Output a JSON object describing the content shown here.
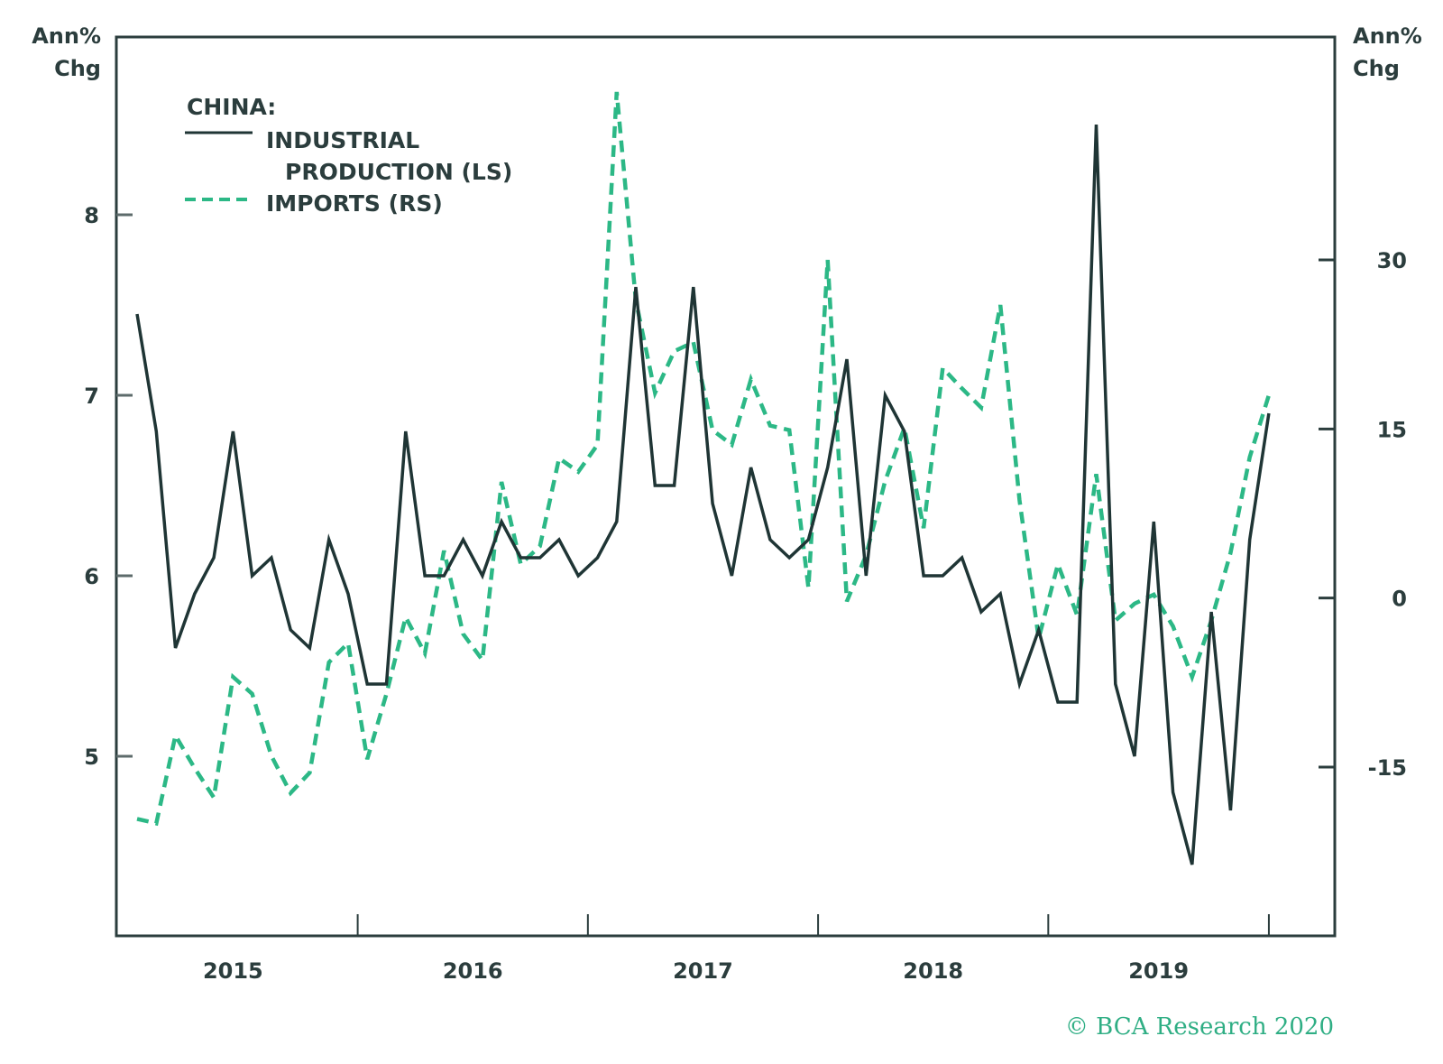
{
  "chart_data": {
    "type": "line",
    "title": "",
    "legend": {
      "heading": "CHINA:",
      "placement": "top-left",
      "entries": [
        {
          "line1": "INDUSTRIAL",
          "line2": "PRODUCTION (LS)",
          "style": "solid"
        },
        {
          "line1": "IMPORTS (RS)",
          "style": "dashed"
        }
      ]
    },
    "left_axis": {
      "label_line1": "Ann%",
      "label_line2": "Chg",
      "ticks": [
        "8",
        "7",
        "6",
        "5"
      ],
      "tick_values": [
        8,
        7,
        6,
        5
      ],
      "range": [
        4.02,
        9.0
      ]
    },
    "right_axis": {
      "label_line1": "Ann%",
      "label_line2": "Chg",
      "ticks": [
        "30",
        "15",
        "0",
        "-15"
      ],
      "tick_values": [
        30,
        15,
        0,
        -15
      ],
      "range": [
        -29.7,
        53.1
      ]
    },
    "x_axis": {
      "tick_labels": [
        "2015",
        "2016",
        "2017",
        "2018",
        "2019"
      ],
      "start": "2015-01",
      "end": "2019-12",
      "frequency": "monthly"
    },
    "series": [
      {
        "name": "Industrial Production (LS)",
        "axis": "left",
        "color": "#1f3535",
        "values": [
          7.45,
          6.8,
          5.6,
          5.9,
          6.1,
          6.8,
          6.0,
          6.1,
          5.7,
          5.6,
          6.2,
          5.9,
          5.4,
          5.4,
          6.8,
          6.0,
          6.0,
          6.2,
          6.0,
          6.3,
          6.1,
          6.1,
          6.2,
          6.0,
          6.1,
          6.3,
          7.6,
          6.5,
          6.5,
          7.6,
          6.4,
          6.0,
          6.6,
          6.2,
          6.1,
          6.2,
          6.6,
          7.2,
          6.0,
          7.0,
          6.8,
          6.0,
          6.0,
          6.1,
          5.8,
          5.9,
          5.4,
          5.7,
          5.3,
          5.3,
          8.5,
          5.4,
          5.0,
          6.3,
          4.8,
          4.4,
          5.8,
          4.7,
          6.2,
          6.9
        ]
      },
      {
        "name": "Imports (RS)",
        "axis": "right",
        "color": "#2cb886",
        "values": [
          -19.6,
          -20.0,
          -12.2,
          -15.1,
          -17.7,
          -7.0,
          -8.5,
          -14.0,
          -17.3,
          -15.5,
          -5.7,
          -4.0,
          -14.3,
          -8.5,
          -1.7,
          -4.9,
          4.2,
          -3.2,
          -5.5,
          10.3,
          3.0,
          4.6,
          12.4,
          11.2,
          13.6,
          44.9,
          26.4,
          18.2,
          21.9,
          22.7,
          14.9,
          13.6,
          19.4,
          15.3,
          14.9,
          0.9,
          30.0,
          -0.3,
          3.8,
          10.4,
          15.1,
          6.2,
          20.4,
          18.6,
          16.9,
          26.0,
          8.7,
          -3.6,
          3.0,
          -1.5,
          11.0,
          -2.0,
          -0.5,
          0.3,
          -2.5,
          -7.0,
          -2.0,
          4.0,
          12.5,
          18.0
        ]
      }
    ],
    "credit": "© BCA Research 2020"
  }
}
